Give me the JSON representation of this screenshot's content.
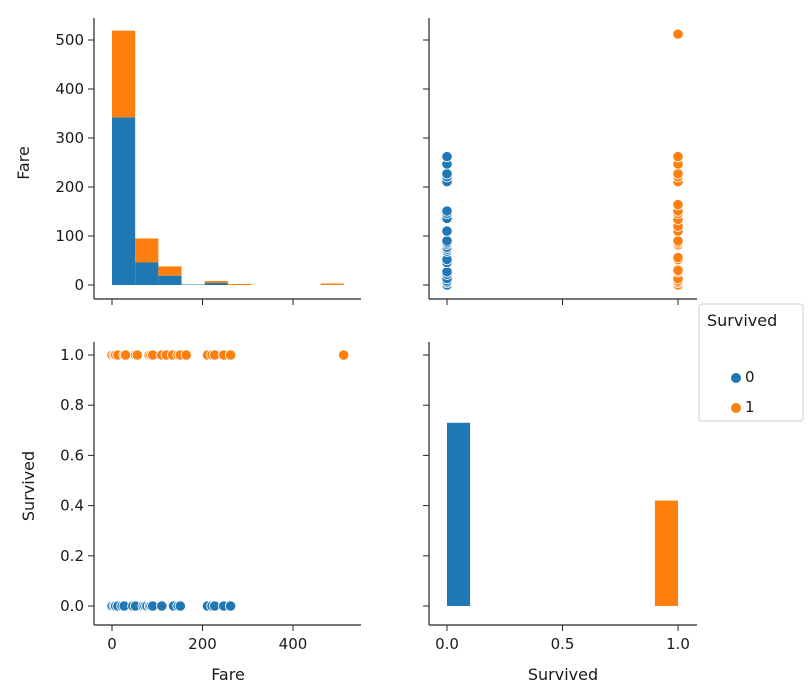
{
  "chart_data": {
    "type": "scatter",
    "kind": "pairplot",
    "hue": "Survived",
    "colors": {
      "0": "#1f77b4",
      "1": "#ff7f0e"
    },
    "legend": {
      "title": "Survived",
      "entries": [
        "0",
        "1"
      ],
      "placement": "right"
    },
    "panels": [
      {
        "id": "fare-hist",
        "type": "histogram",
        "stacked": true,
        "ylabel": "Fare",
        "yticks": [
          "0",
          "100",
          "200",
          "300",
          "400",
          "500"
        ],
        "ylim": [
          -30,
          545
        ],
        "bin_edges": [
          0,
          51.23,
          102.47,
          153.7,
          204.93,
          256.16,
          307.4,
          358.63,
          409.86,
          461.1,
          512.33
        ],
        "series": [
          {
            "name": "0",
            "values": [
              342,
              46,
              19,
              1,
              4,
              0,
              0,
              0,
              0,
              0
            ]
          },
          {
            "name": "1",
            "values": [
              177,
              49,
              19,
              0,
              4,
              2,
              0,
              0,
              0,
              3
            ]
          }
        ]
      },
      {
        "id": "survived-vs-fare",
        "type": "scatter",
        "series": [
          {
            "name": "0",
            "points": [
              [
                0,
                0
              ],
              [
                0,
                5
              ],
              [
                0,
                8
              ],
              [
                0,
                13
              ],
              [
                0,
                22
              ],
              [
                0,
                27
              ],
              [
                0,
                46
              ],
              [
                0,
                52
              ],
              [
                0,
                69
              ],
              [
                0,
                73
              ],
              [
                0,
                77
              ],
              [
                0,
                83
              ],
              [
                0,
                86
              ],
              [
                0,
                90
              ],
              [
                0,
                110
              ],
              [
                0,
                136
              ],
              [
                0,
                146
              ],
              [
                0,
                151
              ],
              [
                0,
                211
              ],
              [
                0,
                221
              ],
              [
                0,
                227
              ],
              [
                0,
                247
              ],
              [
                0,
                262
              ]
            ]
          },
          {
            "name": "1",
            "points": [
              [
                1,
                0
              ],
              [
                1,
                5
              ],
              [
                1,
                8
              ],
              [
                1,
                13
              ],
              [
                1,
                27
              ],
              [
                1,
                30
              ],
              [
                1,
                52
              ],
              [
                1,
                56
              ],
              [
                1,
                82
              ],
              [
                1,
                86
              ],
              [
                1,
                90
              ],
              [
                1,
                110
              ],
              [
                1,
                120
              ],
              [
                1,
                134
              ],
              [
                1,
                146
              ],
              [
                1,
                151
              ],
              [
                1,
                164
              ],
              [
                1,
                211
              ],
              [
                1,
                221
              ],
              [
                1,
                227
              ],
              [
                1,
                247
              ],
              [
                1,
                262
              ],
              [
                1,
                512
              ]
            ]
          }
        ]
      },
      {
        "id": "fare-vs-survived",
        "type": "scatter",
        "xlabel": "Fare",
        "ylabel": "Survived",
        "xticks": [
          "0",
          "200",
          "400"
        ],
        "yticks": [
          "0.0",
          "0.2",
          "0.4",
          "0.6",
          "0.8",
          "1.0"
        ],
        "series": [
          {
            "name": "0",
            "points": [
              [
                0,
                0
              ],
              [
                5,
                0
              ],
              [
                8,
                0
              ],
              [
                13,
                0
              ],
              [
                22,
                0
              ],
              [
                27,
                0
              ],
              [
                46,
                0
              ],
              [
                52,
                0
              ],
              [
                69,
                0
              ],
              [
                73,
                0
              ],
              [
                77,
                0
              ],
              [
                83,
                0
              ],
              [
                86,
                0
              ],
              [
                90,
                0
              ],
              [
                110,
                0
              ],
              [
                136,
                0
              ],
              [
                146,
                0
              ],
              [
                151,
                0
              ],
              [
                211,
                0
              ],
              [
                221,
                0
              ],
              [
                227,
                0
              ],
              [
                247,
                0
              ],
              [
                262,
                0
              ]
            ]
          },
          {
            "name": "1",
            "points": [
              [
                0,
                1
              ],
              [
                5,
                1
              ],
              [
                8,
                1
              ],
              [
                13,
                1
              ],
              [
                27,
                1
              ],
              [
                30,
                1
              ],
              [
                52,
                1
              ],
              [
                56,
                1
              ],
              [
                82,
                1
              ],
              [
                86,
                1
              ],
              [
                90,
                1
              ],
              [
                110,
                1
              ],
              [
                120,
                1
              ],
              [
                134,
                1
              ],
              [
                146,
                1
              ],
              [
                151,
                1
              ],
              [
                164,
                1
              ],
              [
                211,
                1
              ],
              [
                221,
                1
              ],
              [
                227,
                1
              ],
              [
                247,
                1
              ],
              [
                262,
                1
              ],
              [
                512,
                1
              ]
            ]
          }
        ]
      },
      {
        "id": "survived-hist",
        "type": "histogram",
        "xlabel": "Survived",
        "xticks": [
          "0.0",
          "0.5",
          "1.0"
        ],
        "bin_edges": [
          0,
          0.1,
          0.2,
          0.3,
          0.4,
          0.5,
          0.6,
          0.7,
          0.8,
          0.9,
          1.0
        ],
        "series": [
          {
            "name": "0",
            "values": [
              0.73,
              0,
              0,
              0,
              0,
              0,
              0,
              0,
              0,
              0
            ]
          },
          {
            "name": "1",
            "values": [
              0,
              0,
              0,
              0,
              0,
              0,
              0,
              0,
              0,
              0.42
            ]
          }
        ]
      }
    ]
  }
}
